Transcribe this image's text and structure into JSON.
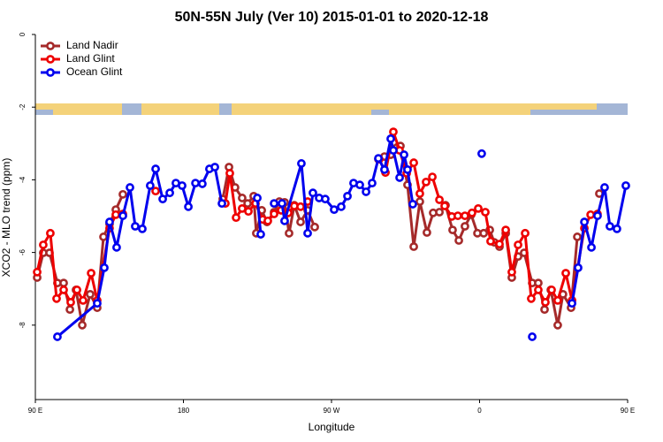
{
  "chart_data": {
    "type": "line",
    "title": "50N-55N July (Ver 10)   2015-01-01 to 2020-12-18",
    "x_label": "Longitude",
    "y_label": "XCO2 - MLO trend (ppm)",
    "xlim": [
      90,
      450
    ],
    "xticks": [
      {
        "value": 90,
        "label": "90 E"
      },
      {
        "value": 180,
        "label": "180"
      },
      {
        "value": 270,
        "label": "90 W"
      },
      {
        "value": 360,
        "label": "0"
      },
      {
        "value": 450,
        "label": "90 E"
      }
    ],
    "ylim": [
      -10,
      0
    ],
    "yticks": [
      -8,
      -6,
      -4,
      -2,
      0
    ],
    "legend": "top-left",
    "series": [
      {
        "name": "Land Nadir",
        "color": "#a52a2a",
        "x": [
          91.1,
          94.8,
          98.6,
          103.4,
          107.2,
          111.0,
          114.7,
          118.5,
          123.3,
          127.6,
          131.4,
          135.1,
          138.9,
          143.2,
          null,
          203.9,
          207.7,
          211.4,
          215.7,
          219.0,
          222.7,
          224.3,
          227.6,
          230.8,
          235.1,
          238.3,
          241.5,
          244.2,
          247.4,
          251.2,
          255.5,
          259.8,
          null,
          298.5,
          302.2,
          306.0,
          309.8,
          311.9,
          316.2,
          320.0,
          323.7,
          328.0,
          331.8,
          335.6,
          339.3,
          343.6,
          347.4,
          351.1,
          354.9,
          358.7,
          362.5,
          366.2,
          368.9,
          372.1,
          375.9,
          379.6,
          383.4,
          387.1,
          392.0,
          395.7,
          399.5,
          403.3,
          407.5,
          410.7,
          415.6,
          419.4,
          null,
          432.8
        ],
        "values": [
          -6.69,
          -6.01,
          -6.01,
          -6.84,
          -6.84,
          -7.57,
          -7.03,
          -8.0,
          -7.15,
          -7.52,
          -5.57,
          -5.21,
          -4.82,
          -4.4,
          null,
          -4.53,
          -3.65,
          -4.21,
          -4.5,
          -4.65,
          -4.45,
          -5.47,
          -4.84,
          -5.16,
          -4.89,
          -4.6,
          -4.62,
          -5.47,
          -4.7,
          -5.16,
          -4.84,
          -5.3,
          null,
          -3.43,
          -3.36,
          -3.31,
          -3.11,
          -3.07,
          -4.14,
          -5.84,
          -4.6,
          -5.45,
          -4.91,
          -4.89,
          -4.7,
          -5.38,
          -5.67,
          -5.28,
          -4.96,
          -5.47,
          -5.47,
          -5.38,
          -5.72,
          -5.84,
          -5.47,
          -6.69,
          -6.11,
          -6.01,
          -6.84,
          -6.84,
          -7.57,
          -7.03,
          -8.0,
          -7.15,
          -7.52,
          -5.57,
          null,
          -4.38
        ]
      },
      {
        "name": "Land Glint",
        "color": "#ee0000",
        "x": [
          91.1,
          94.8,
          99.1,
          102.9,
          107.2,
          111.5,
          115.3,
          119.0,
          123.9,
          127.6,
          135.1,
          138.9,
          143.2,
          null,
          163.1,
          null,
          205.5,
          208.2,
          212.0,
          215.7,
          219.5,
          223.8,
          228.1,
          231.3,
          235.1,
          239.4,
          243.7,
          247.4,
          251.2,
          255.5,
          null,
          299.0,
          302.8,
          307.6,
          311.4,
          315.7,
          320.0,
          323.7,
          327.5,
          331.3,
          335.6,
          338.8,
          343.1,
          346.8,
          351.1,
          355.4,
          359.2,
          363.5,
          366.7,
          372.1,
          375.9,
          379.6,
          383.4,
          387.7,
          391.4,
          395.7,
          400.0,
          403.8,
          407.5,
          412.4,
          416.2,
          423.7,
          427.5,
          431.7
        ],
        "values": [
          -6.54,
          -5.79,
          -5.47,
          -7.27,
          -7.03,
          -7.37,
          -7.03,
          -7.32,
          -6.57,
          -7.32,
          -5.33,
          -4.96,
          -4.94,
          null,
          -4.31,
          null,
          -4.65,
          -3.82,
          -5.04,
          -4.79,
          -4.87,
          -4.65,
          -5.09,
          -5.13,
          -4.94,
          -4.84,
          -4.91,
          -4.72,
          -4.74,
          -4.6,
          null,
          -3.43,
          -3.8,
          -2.68,
          -3.19,
          -3.82,
          -3.53,
          -4.38,
          -4.06,
          -3.92,
          -4.55,
          -4.72,
          -5.01,
          -4.99,
          -4.99,
          -4.91,
          -4.79,
          -4.89,
          -5.69,
          -5.77,
          -5.38,
          -6.54,
          -5.79,
          -5.47,
          -7.27,
          -7.03,
          -7.37,
          -7.03,
          -7.32,
          -6.57,
          -7.32,
          -5.33,
          -4.96,
          -4.94
        ]
      },
      {
        "name": "Ocean Glint",
        "color": "#0000ee",
        "x": [
          103.4,
          127.6,
          131.9,
          135.1,
          139.4,
          143.2,
          147.5,
          150.7,
          155.0,
          159.8,
          163.1,
          167.4,
          171.7,
          175.4,
          179.2,
          183.0,
          187.3,
          191.5,
          195.8,
          199.1,
          203.4,
          null,
          224.9,
          227.0,
          null,
          235.1,
          239.9,
          241.5,
          251.7,
          255.5,
          258.7,
          262.5,
          266.2,
          271.6,
          275.9,
          279.7,
          283.4,
          287.2,
          291.0,
          294.7,
          298.5,
          302.2,
          306.0,
          307.6,
          311.4,
          314.1,
          316.2,
          319.4,
          null,
          361.3,
          null,
          392.0,
          null,
          416.2,
          419.9,
          423.7,
          428.0,
          431.7,
          436.0,
          439.2,
          443.5,
          448.9
        ],
        "values": [
          -8.32,
          -7.4,
          -6.42,
          -5.16,
          -5.86,
          -4.99,
          -4.21,
          -5.28,
          -5.35,
          -4.16,
          -3.7,
          -4.53,
          -4.36,
          -4.09,
          -4.16,
          -4.74,
          -4.09,
          -4.11,
          -3.7,
          -3.65,
          -4.65,
          null,
          -4.5,
          -5.5,
          null,
          -4.65,
          -4.65,
          -5.13,
          -3.55,
          -5.47,
          -4.36,
          -4.5,
          -4.53,
          -4.82,
          -4.74,
          -4.45,
          -4.09,
          -4.14,
          -4.33,
          -4.09,
          -3.41,
          -3.72,
          -2.87,
          -3.19,
          -3.94,
          -3.31,
          -3.72,
          -4.67,
          null,
          -3.28,
          null,
          -8.32,
          null,
          -7.4,
          -6.42,
          -5.16,
          -5.86,
          -4.99,
          -4.21,
          -5.28,
          -5.35,
          -4.16
        ]
      }
    ]
  }
}
